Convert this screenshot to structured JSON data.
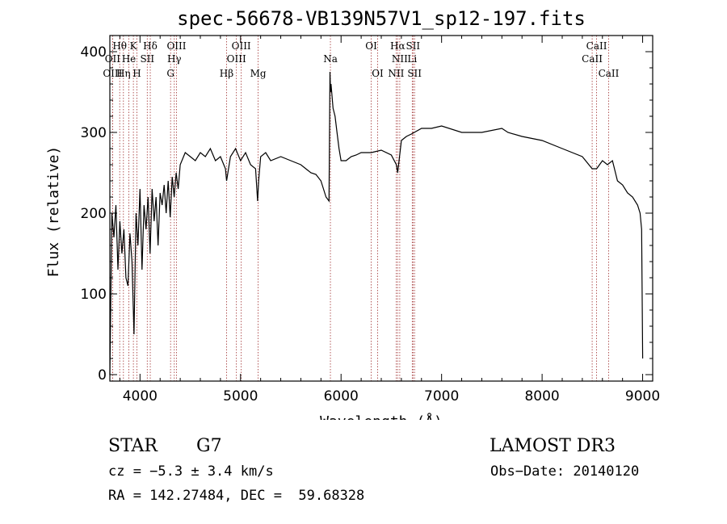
{
  "chart_data": {
    "type": "line",
    "title": "spec-56678-VB139N57V1_sp12-197.fits",
    "xlabel": "Wavelength (Å)",
    "ylabel": "Flux (relative)",
    "xlim": [
      3700,
      9100
    ],
    "ylim": [
      -8,
      420
    ],
    "xticks": [
      4000,
      5000,
      6000,
      7000,
      8000,
      9000
    ],
    "yticks": [
      0,
      100,
      200,
      300,
      400
    ],
    "grid": false,
    "series": [
      {
        "x": [
          3700,
          3720,
          3740,
          3760,
          3780,
          3800,
          3820,
          3840,
          3860,
          3880,
          3900,
          3920,
          3940,
          3960,
          3980,
          4000,
          4020,
          4040,
          4060,
          4080,
          4100,
          4120,
          4140,
          4160,
          4180,
          4200,
          4220,
          4240,
          4260,
          4280,
          4300,
          4320,
          4340,
          4360,
          4380,
          4400,
          4450,
          4500,
          4550,
          4600,
          4650,
          4700,
          4750,
          4800,
          4850,
          4861,
          4900,
          4950,
          5000,
          5050,
          5100,
          5150,
          5170,
          5180,
          5200,
          5250,
          5300,
          5400,
          5500,
          5600,
          5700,
          5750,
          5800,
          5850,
          5880,
          5890,
          5895,
          5900,
          5920,
          5940,
          5960,
          5980,
          6000,
          6050,
          6100,
          6150,
          6200,
          6300,
          6400,
          6500,
          6550,
          6563,
          6600,
          6650,
          6700,
          6800,
          6900,
          7000,
          7200,
          7400,
          7600,
          7660,
          7800,
          8000,
          8200,
          8400,
          8498,
          8542,
          8600,
          8650,
          8700,
          8750,
          8800,
          8850,
          8900,
          8950,
          8975,
          8990,
          9000
        ],
        "values": [
          0,
          200,
          170,
          210,
          130,
          190,
          150,
          180,
          120,
          110,
          175,
          140,
          50,
          200,
          160,
          230,
          130,
          210,
          180,
          220,
          150,
          230,
          190,
          220,
          160,
          225,
          210,
          235,
          200,
          240,
          195,
          245,
          220,
          250,
          230,
          260,
          275,
          270,
          265,
          275,
          270,
          280,
          265,
          270,
          255,
          240,
          270,
          280,
          265,
          275,
          260,
          255,
          215,
          240,
          270,
          275,
          265,
          270,
          265,
          260,
          250,
          248,
          240,
          220,
          215,
          375,
          350,
          360,
          330,
          320,
          300,
          280,
          265,
          265,
          270,
          272,
          275,
          275,
          278,
          272,
          260,
          250,
          290,
          295,
          298,
          305,
          305,
          308,
          300,
          300,
          305,
          300,
          295,
          290,
          280,
          270,
          255,
          255,
          265,
          260,
          265,
          240,
          235,
          225,
          220,
          210,
          200,
          180,
          20
        ]
      }
    ],
    "line_annotations": [
      {
        "label": "Hθ",
        "x": 3798,
        "row": 1
      },
      {
        "label": "OII",
        "x": 3727,
        "row": 2
      },
      {
        "label": "OIII",
        "x": 3727,
        "row": 3
      },
      {
        "label": "K",
        "x": 3934,
        "row": 1
      },
      {
        "label": "He",
        "x": 3889,
        "row": 2
      },
      {
        "label": "Hη",
        "x": 3835,
        "row": 3
      },
      {
        "label": "SII",
        "x": 4072,
        "row": 2
      },
      {
        "label": "H",
        "x": 3969,
        "row": 3
      },
      {
        "label": "Hδ",
        "x": 4102,
        "row": 1
      },
      {
        "label": "OIII",
        "x": 4363,
        "row": 1
      },
      {
        "label": "Hγ",
        "x": 4341,
        "row": 2
      },
      {
        "label": "G",
        "x": 4304,
        "row": 3
      },
      {
        "label": "OIII",
        "x": 5007,
        "row": 1
      },
      {
        "label": "OIII",
        "x": 4959,
        "row": 2
      },
      {
        "label": "Hβ",
        "x": 4861,
        "row": 3
      },
      {
        "label": "Mg",
        "x": 5175,
        "row": 3
      },
      {
        "label": "Na",
        "x": 5894,
        "row": 2
      },
      {
        "label": "OI",
        "x": 6300,
        "row": 1
      },
      {
        "label": "OI",
        "x": 6364,
        "row": 3
      },
      {
        "label": "Hα",
        "x": 6563,
        "row": 1
      },
      {
        "label": "NII",
        "x": 6584,
        "row": 2
      },
      {
        "label": "NII",
        "x": 6548,
        "row": 3
      },
      {
        "label": "SII",
        "x": 6716,
        "row": 1
      },
      {
        "label": "Li",
        "x": 6708,
        "row": 2
      },
      {
        "label": "SII",
        "x": 6731,
        "row": 3
      },
      {
        "label": "CaII",
        "x": 8542,
        "row": 1
      },
      {
        "label": "CaII",
        "x": 8498,
        "row": 2
      },
      {
        "label": "CaII",
        "x": 8662,
        "row": 3
      }
    ]
  },
  "info": {
    "class": "STAR",
    "subclass": "G7",
    "survey": "LAMOST DR3",
    "redshift": "cz = −5.3 ± 3.4 km/s",
    "obs_date": "Obs−Date: 20140120",
    "coords": "RA = 142.27484, DEC =  59.68328"
  },
  "colors": {
    "line": "#000000",
    "marker": "#a03030"
  }
}
